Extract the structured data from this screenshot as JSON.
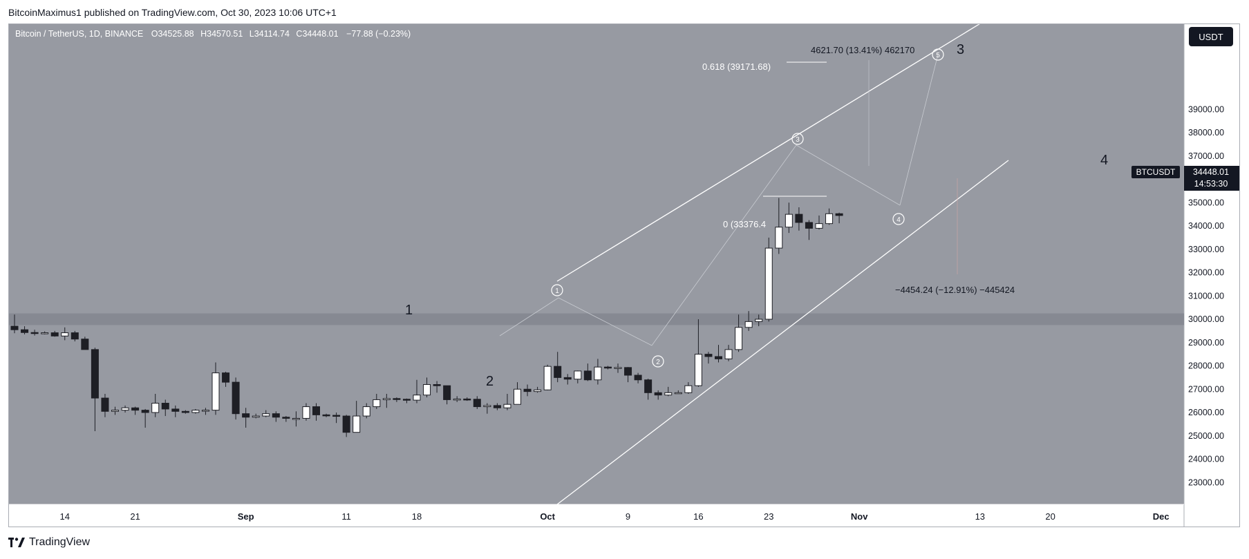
{
  "header": {
    "published_text": "BitcoinMaximus1 published on TradingView.com, Oct 30, 2023 10:06 UTC+1"
  },
  "legend": {
    "symbol": "Bitcoin / TetherUS, 1D, BINANCE",
    "open_label": "O",
    "open": "34525.88",
    "high_label": "H",
    "high": "34570.51",
    "low_label": "L",
    "low": "34114.74",
    "close_label": "C",
    "close": "34448.01",
    "change": "−77.88 (−0.23%)"
  },
  "currency_button": "USDT",
  "price_badge": {
    "symbol": "BTCUSDT",
    "price": "34448.01",
    "countdown": "14:53:30"
  },
  "annotations": {
    "fib_618": "0.618 (39171.68)",
    "fib_0": "0 (33376.4",
    "target_measure": "4621.70 (13.41%) 462170",
    "drop_measure": "−4454.24 (−12.91%) −445424"
  },
  "wave_labels": {
    "w1": "1",
    "w2": "2",
    "w3": "3",
    "w4": "4",
    "c1": "1",
    "c2": "2",
    "c3": "3",
    "c4": "4",
    "c5": "5"
  },
  "footer": {
    "brand": "TradingView"
  },
  "colors": {
    "plot_bg": "#979aa2",
    "support_zone": "#868992",
    "bull_candle": "#ffffff",
    "bear_candle": "#1e1f25",
    "badge_bg": "#131722",
    "axis_text": "#131722"
  },
  "chart_data": {
    "type": "candlestick",
    "title": "Bitcoin / TetherUS, 1D, BINANCE",
    "ylim": [
      22000,
      41000
    ],
    "y_ticks": [
      "23000.00",
      "24000.00",
      "25000.00",
      "26000.00",
      "27000.00",
      "28000.00",
      "29000.00",
      "30000.00",
      "31000.00",
      "32000.00",
      "33000.00",
      "34000.00",
      "35000.00",
      "36000.00",
      "37000.00",
      "38000.00",
      "39000.00"
    ],
    "x_ticks": [
      "14",
      "21",
      "Sep",
      "11",
      "18",
      "Oct",
      "9",
      "16",
      "23",
      "Nov",
      "13",
      "20",
      "Dec"
    ],
    "support_zone": [
      29750,
      30250
    ],
    "candles": [
      {
        "date": "2023-08-09",
        "o": 29700,
        "h": 30200,
        "l": 29400,
        "c": 29550
      },
      {
        "date": "2023-08-10",
        "o": 29550,
        "h": 29700,
        "l": 29350,
        "c": 29430
      },
      {
        "date": "2023-08-11",
        "o": 29430,
        "h": 29550,
        "l": 29300,
        "c": 29400
      },
      {
        "date": "2023-08-12",
        "o": 29400,
        "h": 29480,
        "l": 29350,
        "c": 29420
      },
      {
        "date": "2023-08-13",
        "o": 29420,
        "h": 29500,
        "l": 29250,
        "c": 29280
      },
      {
        "date": "2023-08-14",
        "o": 29280,
        "h": 29650,
        "l": 29100,
        "c": 29420
      },
      {
        "date": "2023-08-15",
        "o": 29420,
        "h": 29500,
        "l": 29050,
        "c": 29150
      },
      {
        "date": "2023-08-16",
        "o": 29150,
        "h": 29250,
        "l": 28700,
        "c": 28700
      },
      {
        "date": "2023-08-17",
        "o": 28700,
        "h": 28780,
        "l": 25200,
        "c": 26620
      },
      {
        "date": "2023-08-18",
        "o": 26620,
        "h": 26800,
        "l": 25800,
        "c": 26050
      },
      {
        "date": "2023-08-19",
        "o": 26050,
        "h": 26250,
        "l": 25900,
        "c": 26100
      },
      {
        "date": "2023-08-20",
        "o": 26100,
        "h": 26300,
        "l": 26000,
        "c": 26200
      },
      {
        "date": "2023-08-21",
        "o": 26200,
        "h": 26250,
        "l": 25900,
        "c": 26100
      },
      {
        "date": "2023-08-22",
        "o": 26100,
        "h": 26150,
        "l": 25350,
        "c": 26000
      },
      {
        "date": "2023-08-23",
        "o": 26000,
        "h": 26800,
        "l": 25800,
        "c": 26400
      },
      {
        "date": "2023-08-24",
        "o": 26400,
        "h": 26550,
        "l": 25850,
        "c": 26150
      },
      {
        "date": "2023-08-25",
        "o": 26150,
        "h": 26300,
        "l": 25800,
        "c": 26050
      },
      {
        "date": "2023-08-26",
        "o": 26050,
        "h": 26100,
        "l": 25950,
        "c": 26000
      },
      {
        "date": "2023-08-27",
        "o": 26000,
        "h": 26150,
        "l": 25950,
        "c": 26100
      },
      {
        "date": "2023-08-28",
        "o": 26100,
        "h": 26200,
        "l": 25900,
        "c": 26100
      },
      {
        "date": "2023-08-29",
        "o": 26100,
        "h": 28150,
        "l": 25900,
        "c": 27700
      },
      {
        "date": "2023-08-30",
        "o": 27700,
        "h": 27750,
        "l": 27100,
        "c": 27300
      },
      {
        "date": "2023-08-31",
        "o": 27300,
        "h": 27500,
        "l": 25700,
        "c": 25950
      },
      {
        "date": "2023-09-01",
        "o": 25950,
        "h": 26200,
        "l": 25350,
        "c": 25800
      },
      {
        "date": "2023-09-02",
        "o": 25800,
        "h": 25950,
        "l": 25750,
        "c": 25850
      },
      {
        "date": "2023-09-03",
        "o": 25850,
        "h": 26100,
        "l": 25800,
        "c": 25950
      },
      {
        "date": "2023-09-04",
        "o": 25950,
        "h": 26050,
        "l": 25600,
        "c": 25800
      },
      {
        "date": "2023-09-05",
        "o": 25800,
        "h": 25850,
        "l": 25600,
        "c": 25750
      },
      {
        "date": "2023-09-06",
        "o": 25750,
        "h": 26050,
        "l": 25400,
        "c": 25750
      },
      {
        "date": "2023-09-07",
        "o": 25750,
        "h": 26400,
        "l": 25650,
        "c": 26250
      },
      {
        "date": "2023-09-08",
        "o": 26250,
        "h": 26400,
        "l": 25650,
        "c": 25900
      },
      {
        "date": "2023-09-09",
        "o": 25900,
        "h": 25950,
        "l": 25800,
        "c": 25880
      },
      {
        "date": "2023-09-10",
        "o": 25880,
        "h": 26000,
        "l": 25550,
        "c": 25850
      },
      {
        "date": "2023-09-11",
        "o": 25850,
        "h": 25900,
        "l": 24950,
        "c": 25150
      },
      {
        "date": "2023-09-12",
        "o": 25150,
        "h": 26500,
        "l": 25150,
        "c": 25850
      },
      {
        "date": "2023-09-13",
        "o": 25850,
        "h": 26400,
        "l": 25750,
        "c": 26250
      },
      {
        "date": "2023-09-14",
        "o": 26250,
        "h": 26800,
        "l": 26150,
        "c": 26550
      },
      {
        "date": "2023-09-15",
        "o": 26550,
        "h": 26800,
        "l": 26200,
        "c": 26600
      },
      {
        "date": "2023-09-16",
        "o": 26600,
        "h": 26650,
        "l": 26450,
        "c": 26570
      },
      {
        "date": "2023-09-17",
        "o": 26570,
        "h": 26600,
        "l": 26400,
        "c": 26530
      },
      {
        "date": "2023-09-18",
        "o": 26530,
        "h": 27400,
        "l": 26400,
        "c": 26750
      },
      {
        "date": "2023-09-19",
        "o": 26750,
        "h": 27500,
        "l": 26650,
        "c": 27200
      },
      {
        "date": "2023-09-20",
        "o": 27200,
        "h": 27350,
        "l": 26850,
        "c": 27150
      },
      {
        "date": "2023-09-21",
        "o": 27150,
        "h": 27150,
        "l": 26350,
        "c": 26550
      },
      {
        "date": "2023-09-22",
        "o": 26550,
        "h": 26700,
        "l": 26450,
        "c": 26580
      },
      {
        "date": "2023-09-23",
        "o": 26580,
        "h": 26650,
        "l": 26500,
        "c": 26570
      },
      {
        "date": "2023-09-24",
        "o": 26570,
        "h": 26700,
        "l": 26150,
        "c": 26250
      },
      {
        "date": "2023-09-25",
        "o": 26250,
        "h": 26400,
        "l": 25950,
        "c": 26300
      },
      {
        "date": "2023-09-26",
        "o": 26300,
        "h": 26400,
        "l": 26100,
        "c": 26200
      },
      {
        "date": "2023-09-27",
        "o": 26200,
        "h": 26800,
        "l": 26100,
        "c": 26350
      },
      {
        "date": "2023-09-28",
        "o": 26350,
        "h": 27300,
        "l": 26350,
        "c": 27000
      },
      {
        "date": "2023-09-29",
        "o": 27000,
        "h": 27200,
        "l": 26700,
        "c": 26900
      },
      {
        "date": "2023-09-30",
        "o": 26900,
        "h": 27100,
        "l": 26850,
        "c": 26970
      },
      {
        "date": "2023-10-01",
        "o": 26970,
        "h": 28050,
        "l": 26950,
        "c": 27980
      },
      {
        "date": "2023-10-02",
        "o": 27980,
        "h": 28600,
        "l": 27300,
        "c": 27500
      },
      {
        "date": "2023-10-03",
        "o": 27500,
        "h": 27650,
        "l": 27200,
        "c": 27430
      },
      {
        "date": "2023-10-04",
        "o": 27430,
        "h": 27800,
        "l": 27250,
        "c": 27780
      },
      {
        "date": "2023-10-05",
        "o": 27780,
        "h": 28100,
        "l": 27350,
        "c": 27400
      },
      {
        "date": "2023-10-06",
        "o": 27400,
        "h": 28300,
        "l": 27200,
        "c": 27950
      },
      {
        "date": "2023-10-07",
        "o": 27950,
        "h": 28000,
        "l": 27850,
        "c": 27920
      },
      {
        "date": "2023-10-08",
        "o": 27920,
        "h": 28100,
        "l": 27700,
        "c": 27930
      },
      {
        "date": "2023-10-09",
        "o": 27930,
        "h": 27950,
        "l": 27300,
        "c": 27600
      },
      {
        "date": "2023-10-10",
        "o": 27600,
        "h": 27700,
        "l": 27250,
        "c": 27400
      },
      {
        "date": "2023-10-11",
        "o": 27400,
        "h": 27450,
        "l": 26550,
        "c": 26850
      },
      {
        "date": "2023-10-12",
        "o": 26850,
        "h": 26950,
        "l": 26550,
        "c": 26750
      },
      {
        "date": "2023-10-13",
        "o": 26750,
        "h": 27100,
        "l": 26700,
        "c": 26850
      },
      {
        "date": "2023-10-14",
        "o": 26850,
        "h": 26950,
        "l": 26800,
        "c": 26850
      },
      {
        "date": "2023-10-15",
        "o": 26850,
        "h": 27300,
        "l": 26800,
        "c": 27150
      },
      {
        "date": "2023-10-16",
        "o": 27150,
        "h": 30000,
        "l": 27100,
        "c": 28500
      },
      {
        "date": "2023-10-17",
        "o": 28500,
        "h": 28600,
        "l": 28100,
        "c": 28400
      },
      {
        "date": "2023-10-18",
        "o": 28400,
        "h": 28900,
        "l": 28150,
        "c": 28300
      },
      {
        "date": "2023-10-19",
        "o": 28300,
        "h": 28900,
        "l": 28200,
        "c": 28700
      },
      {
        "date": "2023-10-20",
        "o": 28700,
        "h": 30200,
        "l": 28600,
        "c": 29650
      },
      {
        "date": "2023-10-21",
        "o": 29650,
        "h": 30350,
        "l": 29500,
        "c": 29900
      },
      {
        "date": "2023-10-22",
        "o": 29900,
        "h": 30200,
        "l": 29700,
        "c": 30000
      },
      {
        "date": "2023-10-23",
        "o": 30000,
        "h": 33500,
        "l": 29900,
        "c": 33050
      },
      {
        "date": "2023-10-24",
        "o": 33050,
        "h": 35200,
        "l": 32800,
        "c": 33950
      },
      {
        "date": "2023-10-25",
        "o": 33950,
        "h": 35000,
        "l": 33700,
        "c": 34500
      },
      {
        "date": "2023-10-26",
        "o": 34500,
        "h": 34800,
        "l": 33800,
        "c": 34150
      },
      {
        "date": "2023-10-27",
        "o": 34150,
        "h": 34250,
        "l": 33400,
        "c": 33900
      },
      {
        "date": "2023-10-28",
        "o": 33900,
        "h": 34450,
        "l": 33850,
        "c": 34100
      },
      {
        "date": "2023-10-29",
        "o": 34100,
        "h": 34750,
        "l": 34050,
        "c": 34525
      },
      {
        "date": "2023-10-30",
        "o": 34525.88,
        "h": 34570.51,
        "l": 34114.74,
        "c": 34448.01
      }
    ]
  }
}
